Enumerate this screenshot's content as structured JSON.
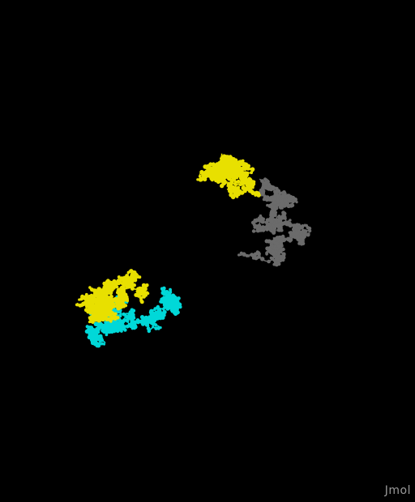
{
  "viewer": {
    "background": "#000000",
    "chain_colors": {
      "gray": "#6b6b6b",
      "yellow": "#e8e000",
      "cyan": "#00d8d8"
    }
  },
  "watermark": {
    "text": "Jmol",
    "color": "#9a9a9a"
  }
}
